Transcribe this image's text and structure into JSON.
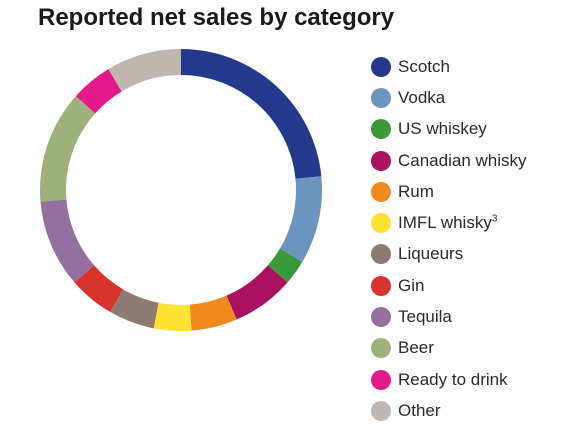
{
  "chart_data": {
    "type": "pie",
    "title": "Reported net sales by category",
    "categories": [
      "Scotch",
      "Vodka",
      "US whiskey",
      "Canadian whisky",
      "Rum",
      "IMFL whisky",
      "Liqueurs",
      "Gin",
      "Tequila",
      "Beer",
      "Ready to drink",
      "Other"
    ],
    "values": [
      24.5,
      10.5,
      3.0,
      7.5,
      5.5,
      4.5,
      5.5,
      5.5,
      10.5,
      13.5,
      5.0,
      9.0
    ],
    "colors": [
      "#233a8c",
      "#6b95bf",
      "#3a9a3a",
      "#a8125f",
      "#f08a1f",
      "#fde234",
      "#8d7b73",
      "#d9342b",
      "#94709f",
      "#9db27a",
      "#e41a8a",
      "#bdb7b0"
    ],
    "legend_position": "right",
    "legend_superscripts": {
      "IMFL whisky": "3"
    }
  }
}
